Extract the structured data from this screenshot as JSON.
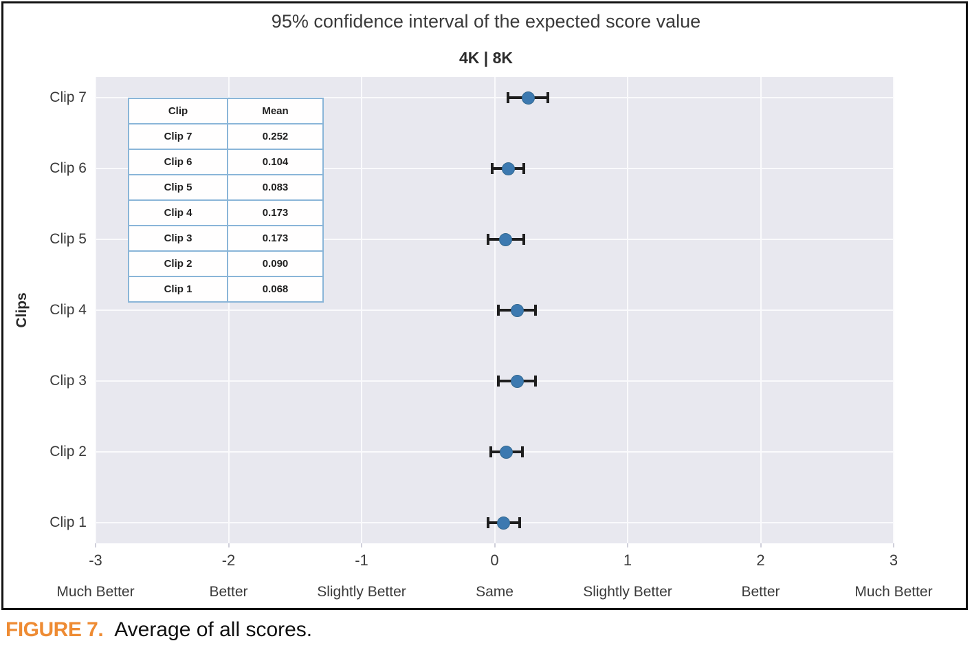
{
  "figure": {
    "title": "95% confidence interval of the expected score value",
    "subtitle": "4K | 8K"
  },
  "caption": {
    "label": "FIGURE 7.",
    "text": "Average of all scores."
  },
  "inset_table": {
    "headers": [
      "Clip",
      "Mean"
    ],
    "rows": [
      [
        "Clip 7",
        "0.252"
      ],
      [
        "Clip 6",
        "0.104"
      ],
      [
        "Clip 5",
        "0.083"
      ],
      [
        "Clip 4",
        "0.173"
      ],
      [
        "Clip 3",
        "0.173"
      ],
      [
        "Clip 2",
        "0.090"
      ],
      [
        "Clip 1",
        "0.068"
      ]
    ]
  },
  "chart_data": {
    "type": "scatter",
    "subtype": "horizontal-confidence-interval",
    "title": "95% confidence interval of the expected score value",
    "subtitle": "4K | 8K",
    "ylabel": "Clips",
    "xlabel": "",
    "xlim": [
      -3,
      3
    ],
    "grid": true,
    "legend": false,
    "categories": [
      "Clip 7",
      "Clip 6",
      "Clip 5",
      "Clip 4",
      "Clip 3",
      "Clip 2",
      "Clip 1"
    ],
    "means": [
      0.252,
      0.104,
      0.083,
      0.173,
      0.173,
      0.09,
      0.068
    ],
    "ci_low": [
      0.1,
      -0.02,
      -0.05,
      0.03,
      0.03,
      -0.03,
      -0.05
    ],
    "ci_high": [
      0.4,
      0.22,
      0.22,
      0.31,
      0.31,
      0.21,
      0.19
    ],
    "xticks": [
      -3,
      -2,
      -1,
      0,
      1,
      2,
      3
    ],
    "xtick_labels": [
      "-3",
      "-2",
      "-1",
      "0",
      "1",
      "2",
      "3"
    ],
    "xtick_sublabels": [
      "Much Better",
      "Better",
      "Slightly Better",
      "Same",
      "Slightly Better",
      "Better",
      "Much Better"
    ],
    "colors": {
      "marker": "#3c79b0",
      "error_bar": "#1e1e1e",
      "plot_background": "#e8e8ef",
      "gridline": "#fafafc",
      "caption_accent": "#ee8b33",
      "table_border": "#8ab5d8"
    }
  }
}
